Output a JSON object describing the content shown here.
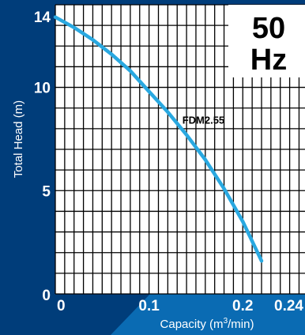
{
  "chart_data": {
    "type": "line",
    "xlabel_prefix": "Capacity (m",
    "xlabel_sup": "3",
    "xlabel_suffix": "/min)",
    "ylabel": "Total Head (m)",
    "xlim": [
      0,
      0.24
    ],
    "ylim": [
      0,
      14
    ],
    "x_ticks": [
      {
        "value": 0,
        "label": "0"
      },
      {
        "value": 0.1,
        "label": "0.1"
      },
      {
        "value": 0.2,
        "label": "0.2"
      },
      {
        "value": 0.24,
        "label": "0.24"
      }
    ],
    "y_ticks": [
      {
        "value": 0,
        "label": "0"
      },
      {
        "value": 5,
        "label": "5"
      },
      {
        "value": 10,
        "label": "10"
      },
      {
        "value": 14,
        "label": "14"
      }
    ],
    "grid": true,
    "series": [
      {
        "name": "FDM2.55",
        "color": "#29a8e0",
        "x": [
          0,
          0.02,
          0.04,
          0.06,
          0.08,
          0.1,
          0.12,
          0.14,
          0.16,
          0.18,
          0.2,
          0.22
        ],
        "y": [
          13.4,
          12.9,
          12.3,
          11.6,
          10.8,
          9.8,
          8.8,
          7.7,
          6.5,
          5.1,
          3.5,
          1.6
        ]
      }
    ],
    "frequency_line1": "50",
    "frequency_line2": "Hz"
  },
  "colors": {
    "background": "#003d7a",
    "panel": "#ffffff",
    "grid": "#000000",
    "accent": "#0a6bb3",
    "curve": "#29a8e0"
  }
}
